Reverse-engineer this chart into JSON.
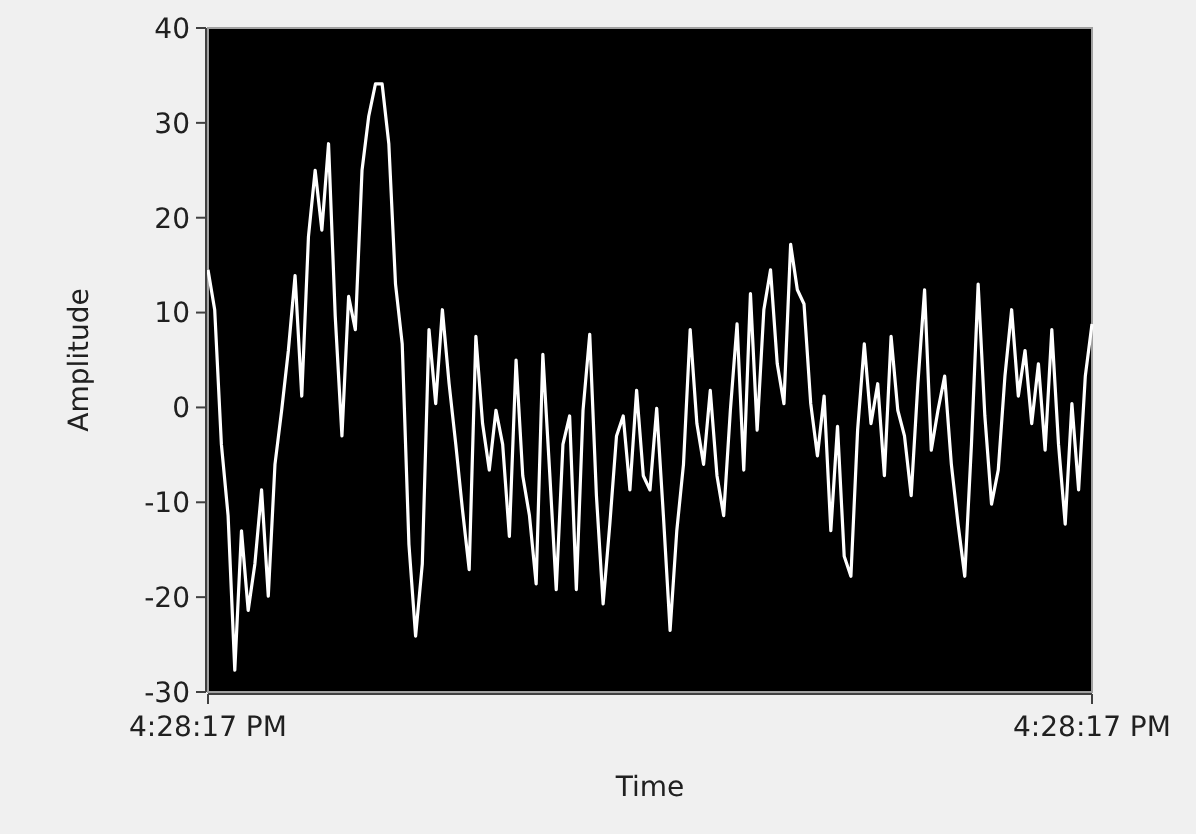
{
  "chart_data": {
    "type": "line",
    "xlabel": "Time",
    "ylabel": "Amplitude",
    "categories": [
      "4:28:17 PM",
      null,
      null,
      null,
      null,
      null,
      null,
      null,
      null,
      null,
      null,
      null,
      null,
      null,
      null,
      null,
      null,
      null,
      null,
      null,
      null,
      null,
      null,
      null,
      null,
      null,
      null,
      null,
      null,
      null,
      null,
      null,
      null,
      null,
      null,
      null,
      null,
      null,
      null,
      null,
      null,
      null,
      null,
      null,
      null,
      null,
      null,
      null,
      null,
      null,
      null,
      null,
      null,
      null,
      null,
      null,
      null,
      null,
      null,
      null,
      null,
      null,
      null,
      null,
      null,
      null,
      null,
      null,
      null,
      null,
      null,
      null,
      null,
      null,
      null,
      null,
      null,
      null,
      null,
      null,
      null,
      null,
      null,
      null,
      null,
      null,
      null,
      null,
      null,
      null,
      null,
      null,
      null,
      null,
      null,
      null,
      null,
      null,
      null,
      null,
      null,
      null,
      null,
      null,
      null,
      null,
      null,
      null,
      null,
      null,
      null,
      null,
      null,
      null,
      null,
      null,
      null,
      null,
      null,
      null,
      null,
      null,
      null,
      null,
      null,
      null,
      null,
      null,
      null,
      null,
      null,
      null,
      "4:28:17 PM"
    ],
    "ylim": [
      -30,
      40
    ],
    "yticks": [
      -30,
      -20,
      -10,
      0,
      10,
      20,
      30,
      40
    ],
    "marker": "none",
    "line_style": "solid",
    "series": [
      {
        "color": "#ffffff",
        "values": [
          14.5,
          10.3,
          -3.9,
          -11.4,
          -27.7,
          -13,
          -21.4,
          -16.5,
          -8.7,
          -19.9,
          -6,
          -0.3,
          6,
          13.9,
          1.2,
          18,
          25,
          18.7,
          27.8,
          9.6,
          -3,
          11.7,
          8.2,
          25,
          30.7,
          34.1,
          34.1,
          27.8,
          13,
          6.7,
          -14.4,
          -24.1,
          -16.5,
          8.2,
          0.4,
          10.3,
          2.5,
          -3.9,
          -10.8,
          -17.1,
          7.5,
          -1.7,
          -6.6,
          -0.3,
          -3.9,
          -13.6,
          5,
          -7.2,
          -11.4,
          -18.6,
          5.6,
          -6.6,
          -19.2,
          -3.9,
          -0.9,
          -19.2,
          -0.3,
          7.7,
          -9.3,
          -20.7,
          -12.3,
          -3,
          -0.9,
          -8.7,
          1.8,
          -7.2,
          -8.7,
          -0.1,
          -11.4,
          -23.5,
          -13,
          -6,
          8.2,
          -1.7,
          -6,
          1.8,
          -7.2,
          -11.4,
          -0.3,
          8.8,
          -6.6,
          12,
          -2.4,
          10.3,
          14.5,
          4.6,
          0.4,
          17.2,
          12.4,
          10.9,
          0.4,
          -5.1,
          1.2,
          -13,
          -2,
          -15.7,
          -17.8,
          -2.4,
          6.7,
          -1.7,
          2.5,
          -7.2,
          7.5,
          -0.3,
          -3,
          -9.3,
          2.5,
          12.4,
          -4.5,
          -0.3,
          3.3,
          -6,
          -12.3,
          -17.8,
          -3.9,
          13,
          -0.9,
          -10.2,
          -6.6,
          3.3,
          10.3,
          1.2,
          6,
          -1.7,
          4.6,
          -4.5,
          8.2,
          -3.9,
          -12.3,
          0.4,
          -8.7,
          3.3,
          8.8
        ]
      }
    ]
  }
}
